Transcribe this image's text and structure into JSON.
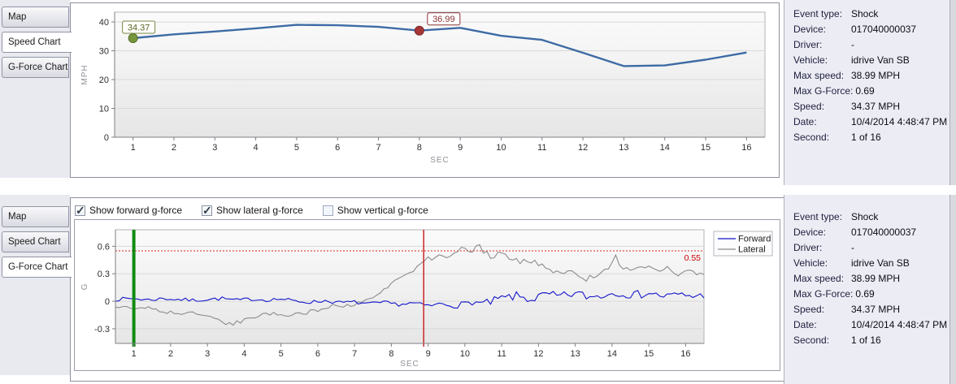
{
  "tabs": {
    "items": [
      {
        "label": "Map"
      },
      {
        "label": "Speed Chart"
      },
      {
        "label": "G-Force Chart"
      }
    ]
  },
  "top_panel": {
    "active_tab": "Speed Chart"
  },
  "bottom_panel": {
    "active_tab": "G-Force Chart"
  },
  "info": {
    "rows": [
      {
        "label": "Event type:",
        "value": "Shock"
      },
      {
        "label": "Device:",
        "value": "017040000037"
      },
      {
        "label": "Driver:",
        "value": "-"
      },
      {
        "label": "Vehicle:",
        "value": "idrive Van SB"
      },
      {
        "label": "Max speed:",
        "value": "38.99 MPH"
      },
      {
        "label": "Max G-Force:",
        "value": "0.69"
      },
      {
        "label": "Speed:",
        "value": "34.37 MPH"
      },
      {
        "label": "Date:",
        "value": "10/4/2014 4:48:47 PM"
      },
      {
        "label": "Second:",
        "value": "1 of 16"
      }
    ]
  },
  "gforce_controls": {
    "checkboxes": [
      {
        "label": "Show forward g-force",
        "checked": true
      },
      {
        "label": "Show lateral g-force",
        "checked": true
      },
      {
        "label": "Show vertical g-force",
        "checked": false
      }
    ]
  },
  "colors": {
    "panel_bg": "#ecedf4",
    "tabstrip_bg": "#e9eaf0",
    "box_border": "#8f90a0",
    "grid": "#d9d9d9",
    "axis": "#7d7d85",
    "tick_text": "#2e2e2e",
    "axis_title": "#8f8f98"
  },
  "chart_data": [
    {
      "id": "speed",
      "type": "line",
      "title": "",
      "xlabel": "SEC",
      "ylabel": "MPH",
      "x": [
        1,
        2,
        3,
        4,
        5,
        6,
        7,
        8,
        9,
        10,
        11,
        12,
        13,
        14,
        15,
        16
      ],
      "values": [
        34.37,
        35.7,
        36.7,
        37.8,
        38.99,
        38.85,
        38.3,
        36.99,
        37.95,
        35.2,
        33.8,
        29.3,
        24.7,
        24.9,
        26.9,
        29.4
      ],
      "ylim": [
        0,
        43.4
      ],
      "yticks": [
        0,
        10,
        20,
        30,
        40
      ],
      "line_color": "#3d6ba5",
      "grid": true,
      "markers": [
        {
          "x": 1,
          "y": 34.37,
          "label": "34.37",
          "fill": "#76963c",
          "stroke": "#55702a",
          "box_border": "#77883f",
          "text_color": "#5a6420"
        },
        {
          "x": 8,
          "y": 36.99,
          "label": "36.99",
          "fill": "#a63537",
          "stroke": "#7e282a",
          "box_border": "#8c3335",
          "text_color": "#8c3335"
        }
      ]
    },
    {
      "id": "gforce",
      "type": "line",
      "title": "",
      "xlabel": "SEC",
      "ylabel": "G",
      "xlim": [
        0.5,
        16.5
      ],
      "ylim": [
        -0.46,
        0.78
      ],
      "xticks": [
        1,
        2,
        3,
        4,
        5,
        6,
        7,
        8,
        9,
        10,
        11,
        12,
        13,
        14,
        15,
        16
      ],
      "yticks": [
        -0.3,
        0,
        0.3,
        0.6
      ],
      "ytick_labels": [
        "-0.3",
        "0",
        "0.3",
        "0.6"
      ],
      "grid": true,
      "samples_per_sec": 10,
      "seed": 7,
      "threshold": {
        "y": 0.55,
        "label": "0.55",
        "color": "#dd2222",
        "label_color": "#cc0000"
      },
      "event_lines": [
        {
          "x": 1,
          "color": "#128a12",
          "width": 4,
          "name": "event-start-line"
        },
        {
          "x": 8.88,
          "color": "#cc2626",
          "width": 1.5,
          "name": "event-marker-line"
        }
      ],
      "legend": {
        "position": "right",
        "entries": [
          {
            "name": "Forward",
            "color": "#1414cc"
          },
          {
            "name": "Lateral",
            "color": "#8c8c8c"
          }
        ]
      },
      "series": [
        {
          "name": "Forward",
          "color": "#1414cc",
          "trend": [
            [
              0.5,
              0.02
            ],
            [
              1,
              0.03
            ],
            [
              1.4,
              0.015
            ],
            [
              1.8,
              0.03
            ],
            [
              2.2,
              0.02
            ],
            [
              2.6,
              0.01
            ],
            [
              3,
              0.02
            ],
            [
              3.4,
              0.03
            ],
            [
              3.8,
              0.01
            ],
            [
              4.2,
              0.025
            ],
            [
              4.6,
              0.015
            ],
            [
              5,
              0.025
            ],
            [
              5.4,
              0.0
            ],
            [
              5.8,
              -0.01
            ],
            [
              6.2,
              0.005
            ],
            [
              6.6,
              -0.015
            ],
            [
              7,
              -0.01
            ],
            [
              7.4,
              -0.03
            ],
            [
              7.8,
              -0.015
            ],
            [
              8.2,
              -0.035
            ],
            [
              8.6,
              -0.02
            ],
            [
              9,
              -0.05
            ],
            [
              9.4,
              -0.03
            ],
            [
              9.8,
              -0.045
            ],
            [
              10.2,
              -0.01
            ],
            [
              10.6,
              -0.025
            ],
            [
              11,
              0.03
            ],
            [
              11.4,
              0.055
            ],
            [
              11.8,
              0.02
            ],
            [
              12.2,
              0.07
            ],
            [
              12.6,
              0.05
            ],
            [
              13,
              0.085
            ],
            [
              13.4,
              0.045
            ],
            [
              13.8,
              0.07
            ],
            [
              14.2,
              0.1
            ],
            [
              14.6,
              0.065
            ],
            [
              15,
              0.09
            ],
            [
              15.4,
              0.055
            ],
            [
              15.8,
              0.075
            ],
            [
              16.2,
              0.055
            ],
            [
              16.5,
              0.065
            ]
          ],
          "noise": [
            {
              "until": 9,
              "amp": 0.02
            },
            {
              "until": 10.5,
              "amp": 0.032
            },
            {
              "until": 14.8,
              "amp": 0.048
            },
            {
              "until": 16.5,
              "amp": 0.035
            }
          ]
        },
        {
          "name": "Lateral",
          "color": "#8c8c8c",
          "trend": [
            [
              0.5,
              -0.06
            ],
            [
              1,
              -0.08
            ],
            [
              1.3,
              -0.06
            ],
            [
              1.6,
              -0.1
            ],
            [
              2,
              -0.12
            ],
            [
              2.4,
              -0.14
            ],
            [
              2.8,
              -0.13
            ],
            [
              3.1,
              -0.17
            ],
            [
              3.4,
              -0.23
            ],
            [
              3.7,
              -0.25
            ],
            [
              4,
              -0.2
            ],
            [
              4.4,
              -0.16
            ],
            [
              4.8,
              -0.13
            ],
            [
              5.2,
              -0.15
            ],
            [
              5.6,
              -0.13
            ],
            [
              6,
              -0.1
            ],
            [
              6.4,
              -0.05
            ],
            [
              6.8,
              -0.04
            ],
            [
              7.2,
              -0.02
            ],
            [
              7.6,
              0.05
            ],
            [
              8,
              0.2
            ],
            [
              8.3,
              0.28
            ],
            [
              8.6,
              0.3
            ],
            [
              8.9,
              0.47
            ],
            [
              9.1,
              0.44
            ],
            [
              9.4,
              0.5
            ],
            [
              9.7,
              0.52
            ],
            [
              9.9,
              0.6
            ],
            [
              10.1,
              0.56
            ],
            [
              10.4,
              0.58
            ],
            [
              10.7,
              0.5
            ],
            [
              11,
              0.54
            ],
            [
              11.3,
              0.46
            ],
            [
              11.6,
              0.44
            ],
            [
              12,
              0.4
            ],
            [
              12.3,
              0.34
            ],
            [
              12.6,
              0.32
            ],
            [
              13,
              0.3
            ],
            [
              13.3,
              0.24
            ],
            [
              13.6,
              0.3
            ],
            [
              13.9,
              0.36
            ],
            [
              14.1,
              0.48
            ],
            [
              14.3,
              0.36
            ],
            [
              14.6,
              0.33
            ],
            [
              14.9,
              0.38
            ],
            [
              15.2,
              0.34
            ],
            [
              15.5,
              0.36
            ],
            [
              15.8,
              0.3
            ],
            [
              16.1,
              0.32
            ],
            [
              16.5,
              0.27
            ]
          ],
          "noise": [
            {
              "until": 7.6,
              "amp": 0.022
            },
            {
              "until": 9,
              "amp": 0.032
            },
            {
              "until": 12.5,
              "amp": 0.038
            },
            {
              "until": 16.5,
              "amp": 0.03
            }
          ]
        }
      ]
    }
  ]
}
